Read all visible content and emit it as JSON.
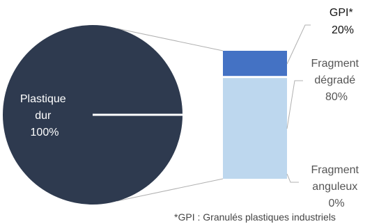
{
  "chart_data": {
    "type": "bar-of-pie",
    "pie": {
      "slices": [
        {
          "label_lines": [
            "Plastique",
            "dur"
          ],
          "value": 100,
          "value_label": "100%",
          "color": "#2e3a4f"
        }
      ]
    },
    "bar": {
      "segments": [
        {
          "label_lines": [
            "Fragment",
            "anguleux"
          ],
          "value": 0,
          "value_label": "0%",
          "color": "#c5dbee"
        },
        {
          "label_lines": [
            "Fragment",
            "dégradé"
          ],
          "value": 80,
          "value_label": "80%",
          "color": "#bdd7ee"
        },
        {
          "label_lines": [
            "GPI*"
          ],
          "value": 20,
          "value_label": "20%",
          "color": "#4472c4"
        }
      ]
    },
    "footnote": "*GPI : Granulés plastiques industriels",
    "colors": {
      "leader_line": "#b0b0b0",
      "separator": "#ffffff"
    }
  }
}
